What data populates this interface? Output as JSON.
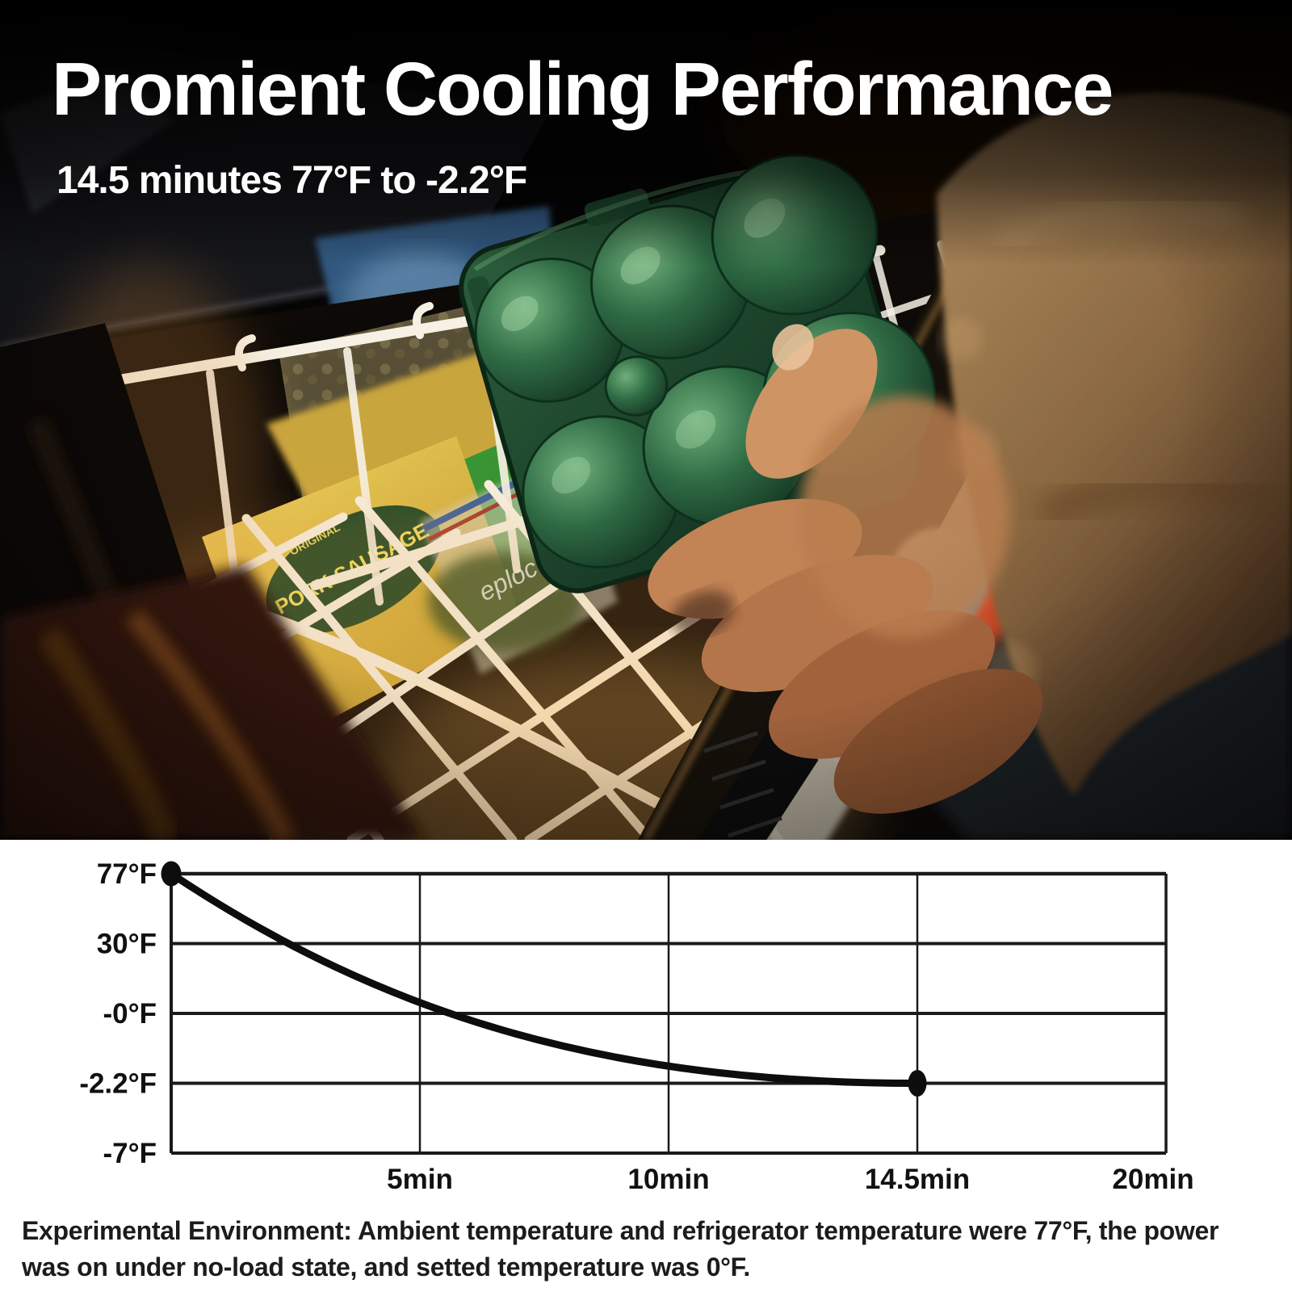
{
  "hero": {
    "title": "Promient Cooling Performance",
    "subtitle": "14.5 minutes 77°F to -2.2°F"
  },
  "photo": {
    "description": "Night photo: a hand reaches into an open portable freezer filled with a white wire basket and frozen food packages, holding a dark green egg carrier",
    "pork_label_top": "ORIGINAL",
    "pork_label": "PORK SAUSAGE",
    "ziploc_label": "eploc"
  },
  "chart_data": {
    "type": "line",
    "title": "",
    "xlabel": "",
    "ylabel": "",
    "x_tick_labels": [
      "5min",
      "10min",
      "14.5min",
      "20min"
    ],
    "x_tick_values_min": [
      5,
      10,
      14.5,
      20
    ],
    "y_tick_labels": [
      "77°F",
      "30°F",
      "-0°F",
      "-2.2°F",
      "-7°F"
    ],
    "y_tick_values_f": [
      77,
      30,
      0,
      -2.2,
      -7
    ],
    "x_range_min": [
      0,
      20
    ],
    "y_range_f": [
      -7,
      77
    ],
    "grid": true,
    "legend": "none",
    "note": "ticks are equally spaced on both axes despite non-linear values; curve is an exponential-style decay",
    "series": [
      {
        "name": "refrigerator-temperature",
        "color": "#0d0d0d",
        "points": [
          {
            "x_min": 0,
            "y_f": 77
          },
          {
            "x_min": 14.5,
            "y_f": -2.2
          }
        ],
        "endpoints_marked": true
      }
    ]
  },
  "footer": {
    "lines": [
      "Experimental Environment: Ambient temperature and refrigerator temperature were 77°F, the power",
      "was on under no-load state, and setted temperature was 0°F."
    ]
  },
  "colors": {
    "background": "#ffffff",
    "hero_background": "#040404",
    "hero_text": "#ffffff",
    "grid_line": "#1a1a1a",
    "curve": "#0d0d0d",
    "chart_text": "#111111",
    "footnote_text": "#1c1c1c",
    "egg_carton_green": "#1d4a2e",
    "basket_wire": "#f6f1e4",
    "warm_glow": "#e89a3c"
  }
}
